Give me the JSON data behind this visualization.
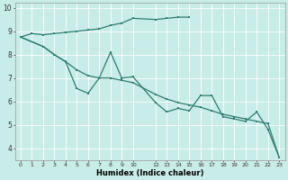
{
  "xlabel": "Humidex (Indice chaleur)",
  "bg_color": "#c8ece8",
  "line_color": "#2d7d6e",
  "grid_color": "#ffffff",
  "xlim": [
    -0.5,
    23.5
  ],
  "ylim": [
    3.5,
    10.2
  ],
  "yticks": [
    4,
    5,
    6,
    7,
    8,
    9,
    10
  ],
  "xtick_positions": [
    0,
    1,
    2,
    3,
    4,
    5,
    6,
    7,
    8,
    9,
    10,
    12,
    13,
    14,
    15,
    16,
    17,
    18,
    19,
    20,
    21,
    22,
    23
  ],
  "xtick_labels": [
    "0",
    "1",
    "2",
    "3",
    "4",
    "5",
    "6",
    "7",
    "8",
    "9",
    "10",
    "12",
    "13",
    "14",
    "15",
    "16",
    "17",
    "18",
    "19",
    "20",
    "21",
    "22",
    "23"
  ],
  "line1_x": [
    0,
    1,
    2,
    3,
    4,
    5,
    6,
    7,
    8,
    9,
    10,
    12,
    13,
    14,
    15
  ],
  "line1_y": [
    8.75,
    8.9,
    8.85,
    8.9,
    8.95,
    9.0,
    9.05,
    9.1,
    9.25,
    9.35,
    9.55,
    9.5,
    9.55,
    9.6,
    9.6
  ],
  "line2_x": [
    0,
    2,
    3,
    4,
    5,
    6,
    7,
    8,
    9,
    10,
    12,
    13,
    14,
    15,
    16,
    17,
    18,
    19,
    20,
    21,
    22,
    23
  ],
  "line2_y": [
    8.75,
    8.35,
    8.0,
    7.7,
    6.55,
    6.35,
    7.0,
    8.1,
    7.0,
    7.05,
    5.95,
    5.55,
    5.7,
    5.6,
    6.25,
    6.25,
    5.35,
    5.25,
    5.15,
    5.55,
    4.8,
    3.6
  ],
  "line3_x": [
    0,
    2,
    3,
    4,
    5,
    6,
    7,
    8,
    9,
    10,
    12,
    13,
    14,
    15,
    16,
    17,
    18,
    19,
    20,
    21,
    22,
    23
  ],
  "line3_y": [
    8.75,
    8.35,
    8.0,
    7.7,
    7.35,
    7.1,
    7.0,
    7.0,
    6.9,
    6.8,
    6.3,
    6.1,
    5.95,
    5.85,
    5.75,
    5.6,
    5.45,
    5.35,
    5.25,
    5.15,
    5.05,
    3.6
  ]
}
